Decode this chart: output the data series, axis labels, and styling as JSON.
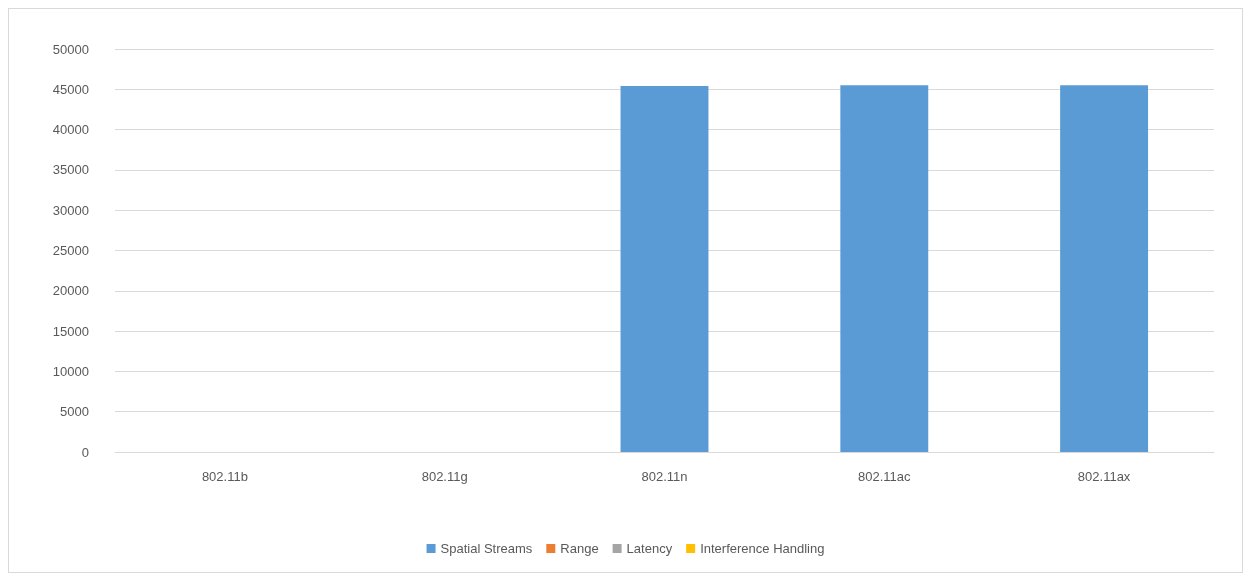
{
  "chart_data": {
    "type": "bar",
    "categories": [
      "802.11b",
      "802.11g",
      "802.11n",
      "802.11ac",
      "802.11ax"
    ],
    "series": [
      {
        "name": "Spatial Streams",
        "color": "#5b9bd5",
        "values": [
          0,
          0,
          45400,
          45500,
          45500
        ]
      },
      {
        "name": "Range",
        "color": "#ed7d31",
        "values": [
          0,
          0,
          0,
          0,
          0
        ]
      },
      {
        "name": "Latency",
        "color": "#a5a5a5",
        "values": [
          0,
          0,
          0,
          0,
          0
        ]
      },
      {
        "name": "Interference Handling",
        "color": "#ffc000",
        "values": [
          0,
          0,
          0,
          0,
          0
        ]
      }
    ],
    "ylim": [
      0,
      50000
    ],
    "yticks": [
      0,
      5000,
      10000,
      15000,
      20000,
      25000,
      30000,
      35000,
      40000,
      45000,
      50000
    ],
    "grid": "y",
    "legend": "bottom"
  }
}
